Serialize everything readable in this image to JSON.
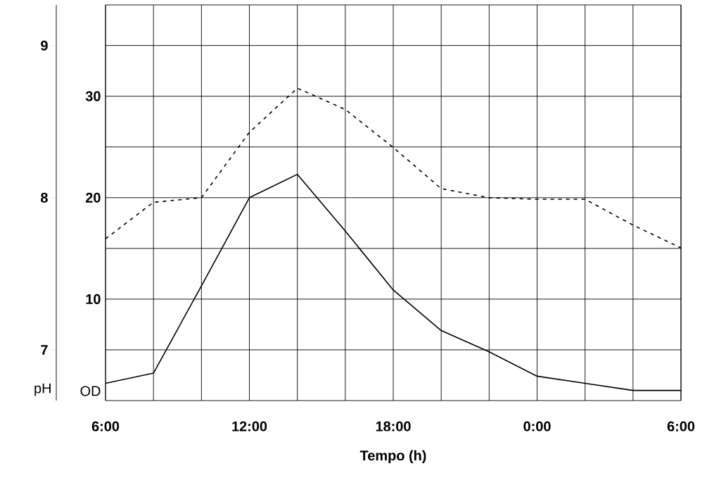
{
  "chart_data": {
    "type": "line",
    "xlabel": "Tempo (h)",
    "ylabel": "OD",
    "y2label": "pH",
    "grid": true,
    "x": [
      "2000-01-01T06:00",
      "2000-01-01T08:00",
      "2000-01-01T10:00",
      "2000-01-01T12:00",
      "2000-01-01T14:00",
      "2000-01-01T16:00",
      "2000-01-01T18:00",
      "2000-01-01T20:00",
      "2000-01-01T22:00",
      "2000-01-02T00:00",
      "2000-01-02T02:00",
      "2000-01-02T04:00",
      "2000-01-02T06:00"
    ],
    "xlim": [
      "2000-01-01T06:00",
      "2000-01-02T06:00"
    ],
    "xticks": [
      {
        "value": "2000-01-01T06:00",
        "label": "6:00"
      },
      {
        "value": "2000-01-01T08:00",
        "label": null
      },
      {
        "value": "2000-01-01T10:00",
        "label": null
      },
      {
        "value": "2000-01-01T12:00",
        "label": "12:00"
      },
      {
        "value": "2000-01-01T14:00",
        "label": null
      },
      {
        "value": "2000-01-01T16:00",
        "label": null
      },
      {
        "value": "2000-01-01T18:00",
        "label": "18:00"
      },
      {
        "value": "2000-01-01T20:00",
        "label": null
      },
      {
        "value": "2000-01-01T22:00",
        "label": null
      },
      {
        "value": "2000-01-02T00:00",
        "label": "0:00"
      },
      {
        "value": "2000-01-02T02:00",
        "label": null
      },
      {
        "value": "2000-01-02T04:00",
        "label": null
      },
      {
        "value": "2000-01-02T06:00",
        "label": "6:00"
      }
    ],
    "ylim": [
      0,
      39
    ],
    "yticks": [
      {
        "value": 5,
        "label": null
      },
      10,
      {
        "value": 15,
        "label": null
      },
      20,
      {
        "value": 25,
        "label": null
      },
      30,
      {
        "value": 35,
        "label": null
      }
    ],
    "y2lim": [
      6.667,
      9.267
    ],
    "y2ticks": [
      7,
      8,
      9
    ],
    "series": [
      {
        "color": "#000000",
        "line_style": "solid",
        "values": [
          1.7,
          2.7,
          11.3,
          20,
          22.3,
          16.7,
          10.9,
          6.9,
          4.8,
          2.4,
          1.7,
          1.0,
          1.0
        ]
      },
      {
        "color": "#000000",
        "line_style": "dashed",
        "axis": "y2",
        "values": [
          7.73,
          7.97,
          8.0,
          8.43,
          8.72,
          8.58,
          8.33,
          8.06,
          8.0,
          7.99,
          7.99,
          7.82,
          7.67
        ]
      }
    ]
  }
}
